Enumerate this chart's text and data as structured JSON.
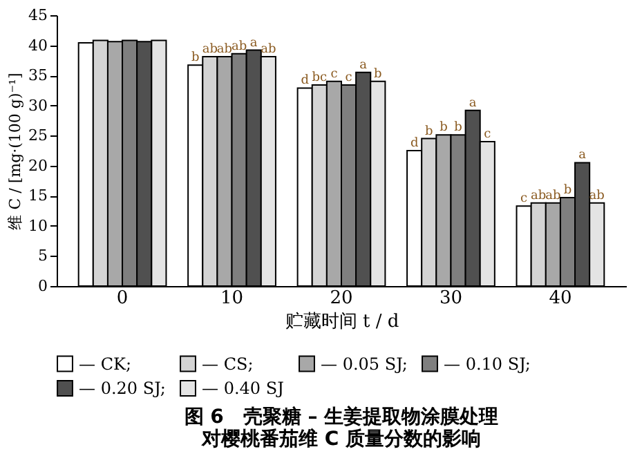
{
  "chart_data": {
    "type": "bar",
    "title": "图 6　壳聚糖 – 生姜提取物涂膜处理对樱桃番茄维 C 质量分数的影响",
    "xlabel": "贮藏时间 t / d",
    "ylabel": "维 C / [mg·(100 g)⁻¹]",
    "categories": [
      "0",
      "10",
      "20",
      "30",
      "40"
    ],
    "series": [
      {
        "name": "— CK;",
        "color": "#ffffff",
        "values": [
          40.4,
          36.7,
          32.9,
          22.5,
          13.3
        ],
        "value_labels": [
          null,
          "b",
          "d",
          "d",
          "c"
        ]
      },
      {
        "name": "— CS;",
        "color": "#d4d4d4",
        "values": [
          40.8,
          38.1,
          33.4,
          24.5,
          13.8
        ],
        "value_labels": [
          null,
          "ab",
          "bc",
          "b",
          "ab"
        ]
      },
      {
        "name": "— 0.05 SJ;",
        "color": "#a8a8a8",
        "values": [
          40.6,
          38.1,
          34.0,
          25.1,
          13.8
        ],
        "value_labels": [
          null,
          "ab",
          "c",
          "b",
          "ab"
        ]
      },
      {
        "name": "— 0.10 SJ;",
        "color": "#7f7f7f",
        "values": [
          40.8,
          38.6,
          33.4,
          25.1,
          14.7
        ],
        "value_labels": [
          null,
          "ab",
          "c",
          "b",
          "b"
        ]
      },
      {
        "name": "— 0.20 SJ;",
        "color": "#505050",
        "values": [
          40.6,
          39.2,
          35.5,
          29.2,
          20.5
        ],
        "value_labels": [
          null,
          "a",
          "a",
          "a",
          "a"
        ]
      },
      {
        "name": "— 0.40 SJ",
        "color": "#e4e4e4",
        "values": [
          40.8,
          38.1,
          34.0,
          24.0,
          13.8
        ],
        "value_labels": [
          null,
          "ab",
          "b",
          "c",
          "ab"
        ]
      }
    ],
    "ylim": [
      0,
      45
    ],
    "yticks": [
      0,
      5,
      10,
      15,
      20,
      25,
      30,
      35,
      40,
      45
    ],
    "grid": false,
    "legend": "bottom"
  }
}
